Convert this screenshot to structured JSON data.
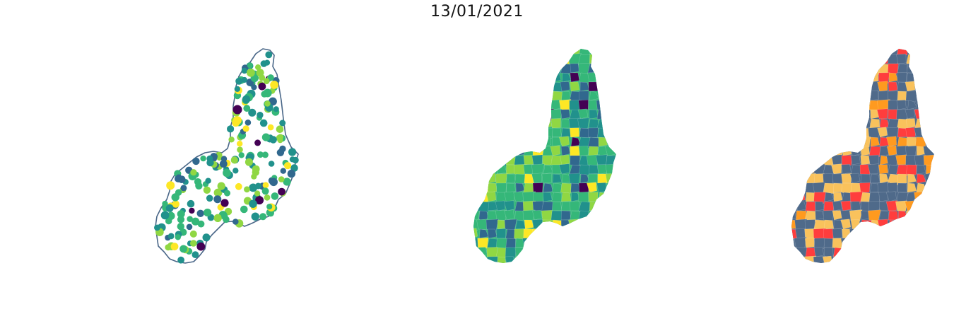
{
  "title": "13/01/2021",
  "panels": [
    {
      "id": "points",
      "kind": "point-map"
    },
    {
      "id": "choropleth",
      "kind": "choropleth-viridis"
    },
    {
      "id": "categories",
      "kind": "choropleth-categorical"
    }
  ],
  "colors": {
    "outline": "#4a6788",
    "viridis": [
      "#440154",
      "#31688e",
      "#21918c",
      "#35b779",
      "#90d743",
      "#fde725"
    ],
    "category_base": "#4f6a8a",
    "category_red": "#ff3d3d",
    "category_orange": "#ff9a1f",
    "category_yellow": "#f9c25c"
  }
}
